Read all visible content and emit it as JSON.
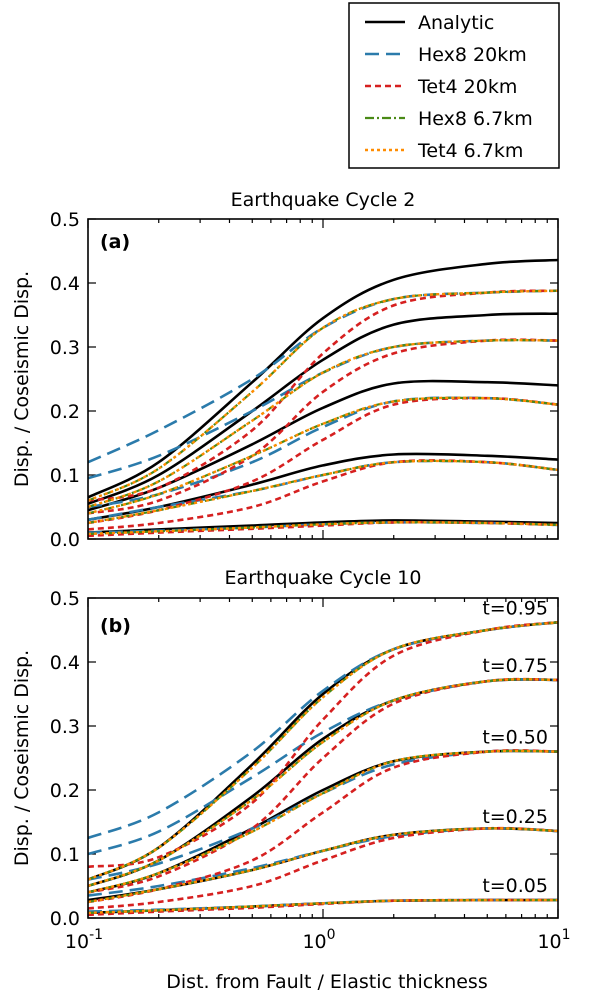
{
  "legend": [
    {
      "label": "Analytic",
      "color": "#000000",
      "dash": "solid"
    },
    {
      "label": "Hex8 20km",
      "color": "#2b7bab",
      "dash": "long"
    },
    {
      "label": "Tet4 20km",
      "color": "#d62020",
      "dash": "short"
    },
    {
      "label": "Hex8 6.7km",
      "color": "#4a8a16",
      "dash": "dashdot"
    },
    {
      "label": "Tet4 6.7km",
      "color": "#ff8c00",
      "dash": "dot"
    }
  ],
  "xlabel": "Dist. from Fault / Elastic thickness",
  "ylabel": "Disp. / Coseismic Disp.",
  "chart_data": [
    {
      "type": "line",
      "title": "Earthquake Cycle 2",
      "panel_label": "(a)",
      "xscale": "log",
      "xlim": [
        0.1,
        10
      ],
      "ylim": [
        0.0,
        0.5
      ],
      "yticks": [
        "0.0",
        "0.1",
        "0.2",
        "0.3",
        "0.4",
        "0.5"
      ],
      "xticks": [
        {
          "base": "10",
          "exp": "-1"
        },
        {
          "base": "10",
          "exp": "0"
        },
        {
          "base": "10",
          "exp": "1"
        }
      ],
      "x": [
        0.1,
        0.2,
        0.5,
        1,
        2,
        5,
        10
      ],
      "series": [
        {
          "name": "Analytic",
          "curves": [
            [
              0.01,
              0.015,
              0.021,
              0.026,
              0.029,
              0.027,
              0.025
            ],
            [
              0.03,
              0.05,
              0.085,
              0.115,
              0.132,
              0.13,
              0.124
            ],
            [
              0.045,
              0.08,
              0.148,
              0.205,
              0.243,
              0.245,
              0.24
            ],
            [
              0.055,
              0.1,
              0.2,
              0.28,
              0.335,
              0.35,
              0.352
            ],
            [
              0.065,
              0.12,
              0.245,
              0.345,
              0.405,
              0.43,
              0.436
            ]
          ]
        },
        {
          "name": "Hex8 20km",
          "curves": [
            [
              0.01,
              0.013,
              0.018,
              0.023,
              0.026,
              0.025,
              0.022
            ],
            [
              0.03,
              0.05,
              0.075,
              0.1,
              0.12,
              0.12,
              0.108
            ],
            [
              0.05,
              0.07,
              0.12,
              0.175,
              0.215,
              0.22,
              0.21
            ],
            [
              0.095,
              0.13,
              0.2,
              0.26,
              0.3,
              0.31,
              0.31
            ],
            [
              0.12,
              0.17,
              0.25,
              0.33,
              0.375,
              0.385,
              0.388
            ]
          ]
        },
        {
          "name": "Tet4 20km",
          "curves": [
            [
              0.005,
              0.01,
              0.016,
              0.021,
              0.026,
              0.025,
              0.022
            ],
            [
              0.015,
              0.025,
              0.05,
              0.09,
              0.12,
              0.12,
              0.108
            ],
            [
              0.025,
              0.045,
              0.09,
              0.155,
              0.21,
              0.22,
              0.21
            ],
            [
              0.04,
              0.06,
              0.13,
              0.23,
              0.29,
              0.31,
              0.31
            ],
            [
              0.06,
              0.08,
              0.17,
              0.29,
              0.365,
              0.385,
              0.388
            ]
          ]
        },
        {
          "name": "Hex8 6.7km",
          "curves": [
            [
              0.008,
              0.012,
              0.018,
              0.023,
              0.026,
              0.025,
              0.022
            ],
            [
              0.025,
              0.045,
              0.075,
              0.1,
              0.12,
              0.12,
              0.108
            ],
            [
              0.04,
              0.07,
              0.13,
              0.18,
              0.215,
              0.22,
              0.21
            ],
            [
              0.05,
              0.09,
              0.185,
              0.26,
              0.3,
              0.31,
              0.31
            ],
            [
              0.06,
              0.11,
              0.23,
              0.33,
              0.375,
              0.385,
              0.388
            ]
          ]
        },
        {
          "name": "Tet4 6.7km",
          "curves": [
            [
              0.008,
              0.012,
              0.018,
              0.023,
              0.026,
              0.025,
              0.022
            ],
            [
              0.025,
              0.045,
              0.075,
              0.1,
              0.12,
              0.12,
              0.108
            ],
            [
              0.04,
              0.07,
              0.13,
              0.18,
              0.215,
              0.22,
              0.21
            ],
            [
              0.05,
              0.09,
              0.185,
              0.26,
              0.3,
              0.31,
              0.31
            ],
            [
              0.06,
              0.11,
              0.23,
              0.33,
              0.375,
              0.385,
              0.388
            ]
          ]
        }
      ],
      "annotations": []
    },
    {
      "type": "line",
      "title": "Earthquake Cycle 10",
      "panel_label": "(b)",
      "xscale": "log",
      "xlim": [
        0.1,
        10
      ],
      "ylim": [
        0.0,
        0.5
      ],
      "yticks": [
        "0.0",
        "0.1",
        "0.2",
        "0.3",
        "0.4",
        "0.5"
      ],
      "xticks": [
        {
          "base": "10",
          "exp": "-1"
        },
        {
          "base": "10",
          "exp": "0"
        },
        {
          "base": "10",
          "exp": "1"
        }
      ],
      "x": [
        0.1,
        0.2,
        0.5,
        1,
        2,
        5,
        10
      ],
      "series": [
        {
          "name": "Analytic",
          "curves": [
            [
              0.008,
              0.012,
              0.018,
              0.023,
              0.027,
              0.028,
              0.028
            ],
            [
              0.028,
              0.045,
              0.075,
              0.105,
              0.13,
              0.14,
              0.136
            ],
            [
              0.04,
              0.07,
              0.14,
              0.2,
              0.245,
              0.26,
              0.26
            ],
            [
              0.05,
              0.09,
              0.19,
              0.28,
              0.34,
              0.37,
              0.372
            ],
            [
              0.06,
              0.11,
              0.24,
              0.35,
              0.42,
              0.45,
              0.462
            ]
          ]
        },
        {
          "name": "Hex8 20km",
          "curves": [
            [
              0.01,
              0.013,
              0.018,
              0.023,
              0.027,
              0.028,
              0.028
            ],
            [
              0.035,
              0.05,
              0.078,
              0.105,
              0.128,
              0.14,
              0.136
            ],
            [
              0.06,
              0.085,
              0.14,
              0.195,
              0.24,
              0.26,
              0.26
            ],
            [
              0.1,
              0.135,
              0.22,
              0.29,
              0.34,
              0.37,
              0.372
            ],
            [
              0.125,
              0.165,
              0.26,
              0.355,
              0.42,
              0.45,
              0.462
            ]
          ]
        },
        {
          "name": "Tet4 20km",
          "curves": [
            [
              0.005,
              0.01,
              0.016,
              0.022,
              0.027,
              0.028,
              0.028
            ],
            [
              0.015,
              0.025,
              0.05,
              0.09,
              0.125,
              0.14,
              0.136
            ],
            [
              0.025,
              0.045,
              0.09,
              0.165,
              0.235,
              0.26,
              0.26
            ],
            [
              0.04,
              0.065,
              0.14,
              0.25,
              0.335,
              0.37,
              0.372
            ],
            [
              0.08,
              0.095,
              0.18,
              0.31,
              0.41,
              0.45,
              0.462
            ]
          ]
        },
        {
          "name": "Hex8 6.7km",
          "curves": [
            [
              0.008,
              0.012,
              0.018,
              0.023,
              0.027,
              0.028,
              0.028
            ],
            [
              0.025,
              0.045,
              0.075,
              0.105,
              0.13,
              0.14,
              0.136
            ],
            [
              0.04,
              0.07,
              0.135,
              0.195,
              0.245,
              0.26,
              0.26
            ],
            [
              0.05,
              0.09,
              0.185,
              0.275,
              0.34,
              0.37,
              0.372
            ],
            [
              0.06,
              0.11,
              0.235,
              0.345,
              0.42,
              0.45,
              0.462
            ]
          ]
        },
        {
          "name": "Tet4 6.7km",
          "curves": [
            [
              0.008,
              0.012,
              0.018,
              0.023,
              0.027,
              0.028,
              0.028
            ],
            [
              0.025,
              0.045,
              0.075,
              0.105,
              0.13,
              0.14,
              0.136
            ],
            [
              0.04,
              0.07,
              0.135,
              0.195,
              0.245,
              0.26,
              0.26
            ],
            [
              0.05,
              0.09,
              0.185,
              0.275,
              0.34,
              0.37,
              0.372
            ],
            [
              0.06,
              0.11,
              0.235,
              0.345,
              0.42,
              0.45,
              0.462
            ]
          ]
        }
      ],
      "annotations": [
        {
          "text": "t=0.95",
          "x": 10,
          "y": 0.462
        },
        {
          "text": "t=0.75",
          "x": 10,
          "y": 0.372
        },
        {
          "text": "t=0.50",
          "x": 10,
          "y": 0.26
        },
        {
          "text": "t=0.25",
          "x": 10,
          "y": 0.136
        },
        {
          "text": "t=0.05",
          "x": 10,
          "y": 0.028
        }
      ]
    }
  ]
}
